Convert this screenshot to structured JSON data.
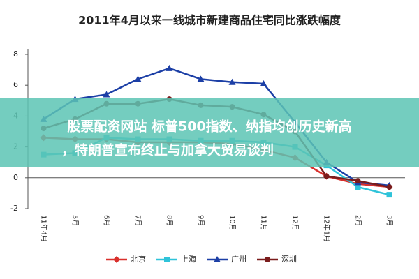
{
  "chart_data": {
    "type": "line",
    "title": "2011年4月以来一线城市新建商品住宅同比涨跌幅度",
    "categories": [
      "11年4月",
      "5月",
      "6月",
      "7月",
      "8月",
      "9月",
      "10月",
      "11月",
      "12月",
      "12年1月",
      "2月",
      "3月"
    ],
    "series": [
      {
        "name": "北京",
        "color": "#d9302c",
        "marker": "diamond",
        "values": [
          2.6,
          2.5,
          2.5,
          2.3,
          2.3,
          2.3,
          2.2,
          1.8,
          1.3,
          0.1,
          -0.4,
          -0.6
        ]
      },
      {
        "name": "上海",
        "color": "#2fc3d9",
        "marker": "square",
        "values": [
          1.5,
          1.6,
          2.6,
          2.5,
          2.5,
          2.4,
          2.4,
          2.3,
          2.0,
          0.8,
          -0.6,
          -1.1
        ]
      },
      {
        "name": "广州",
        "color": "#1c3fa6",
        "marker": "triangle",
        "values": [
          3.8,
          5.1,
          5.4,
          6.4,
          7.1,
          6.4,
          6.2,
          6.1,
          3.6,
          1.0,
          -0.3,
          -0.5
        ]
      },
      {
        "name": "深圳",
        "color": "#7a1c1c",
        "marker": "circle",
        "values": [
          3.2,
          3.8,
          4.8,
          4.8,
          5.1,
          4.7,
          4.6,
          4.1,
          3.0,
          0.1,
          -0.2,
          -0.6
        ]
      }
    ],
    "ylim": [
      -2,
      8
    ],
    "yticks": [
      -2,
      0,
      2,
      4,
      6,
      8
    ],
    "grid": false,
    "legend": "bottom"
  },
  "overlay": {
    "lines": [
      "股票配资网站 标普500指数、纳指均创历史新高",
      "，特朗普宣布终止与加拿大贸易谈判"
    ]
  }
}
